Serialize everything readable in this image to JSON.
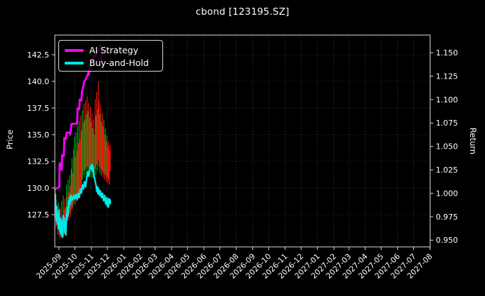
{
  "window": {
    "title": "cbond [123195.SZ]"
  },
  "chart_data": {
    "type": "line",
    "subtype": "price-lines-with-high-low-bars",
    "title": "cbond [123195.SZ]",
    "background": "#000000",
    "text_color": "#ffffff",
    "grid": true,
    "grid_color": "#565656",
    "spine_color": "#dcdcdc",
    "left_axis": {
      "label": "Price",
      "tick_labels": [
        "127.5",
        "130.0",
        "132.5",
        "135.0",
        "137.5",
        "140.0",
        "142.5"
      ],
      "ticks": [
        127.5,
        130.0,
        132.5,
        135.0,
        137.5,
        140.0,
        142.5
      ],
      "range": [
        124.5,
        144.4
      ]
    },
    "right_axis": {
      "label": "Return",
      "tick_labels": [
        "0.950",
        "0.975",
        "1.000",
        "1.025",
        "1.050",
        "1.075",
        "1.100",
        "1.125",
        "1.150"
      ],
      "ticks": [
        0.95,
        0.975,
        1.0,
        1.025,
        1.05,
        1.075,
        1.1,
        1.125,
        1.15
      ],
      "range": [
        0.944,
        1.169
      ]
    },
    "x_axis": {
      "tick_labels": [
        "2025-09",
        "2025-10",
        "2025-11",
        "2025-12",
        "2026-01",
        "2026-02",
        "2026-03",
        "2026-04",
        "2026-05",
        "2026-06",
        "2026-07",
        "2026-08",
        "2026-09",
        "2026-10",
        "2026-11",
        "2026-12",
        "2027-01",
        "2027-02",
        "2027-03",
        "2027-04",
        "2027-05",
        "2027-06",
        "2027-07",
        "2027-08"
      ],
      "tick_day_offsets": [
        0,
        30,
        61,
        91,
        122,
        153,
        181,
        212,
        242,
        273,
        303,
        334,
        365,
        395,
        426,
        456,
        487,
        518,
        546,
        577,
        607,
        638,
        668,
        699
      ],
      "rotation_deg": -45
    },
    "legend": {
      "position": "upper-left",
      "entries": [
        {
          "label": "AI Strategy",
          "color": "#ff00ff"
        },
        {
          "label": "Buy-and-Hold",
          "color": "#00e8e8"
        }
      ]
    },
    "series": [
      {
        "name": "AI Strategy",
        "color": "#ff00ff",
        "width": 2.8,
        "axis": "price",
        "points": [
          [
            -7,
            129.9
          ],
          [
            -3,
            130.0
          ],
          [
            0,
            130.1
          ],
          [
            0.5,
            130.1
          ],
          [
            1,
            132.3
          ],
          [
            4,
            132.3
          ],
          [
            5,
            131.7
          ],
          [
            6,
            133.1
          ],
          [
            9,
            133.0
          ],
          [
            10,
            134.7
          ],
          [
            13,
            134.6
          ],
          [
            14,
            135.2
          ],
          [
            20,
            135.2
          ],
          [
            21,
            135.0
          ],
          [
            22,
            135.3
          ],
          [
            23,
            136.0
          ],
          [
            33,
            136.05
          ],
          [
            34,
            136.0
          ],
          [
            35,
            137.5
          ],
          [
            38,
            137.4
          ],
          [
            39,
            138.3
          ],
          [
            42,
            138.2
          ],
          [
            43,
            139.0
          ],
          [
            45,
            139.4
          ],
          [
            47,
            139.9
          ],
          [
            50,
            140.2
          ],
          [
            53,
            140.5
          ],
          [
            55,
            140.8
          ],
          [
            56,
            140.6
          ],
          [
            58,
            141.3
          ],
          [
            60,
            141.6
          ],
          [
            62,
            142.0
          ],
          [
            64,
            141.8
          ],
          [
            65,
            142.3
          ],
          [
            68,
            142.5
          ],
          [
            70,
            142.4
          ],
          [
            71,
            142.8
          ],
          [
            74,
            142.9
          ],
          [
            77,
            143.1
          ],
          [
            79,
            143.45
          ],
          [
            80,
            142.2
          ],
          [
            81,
            141.4
          ],
          [
            83,
            141.2
          ]
        ]
      },
      {
        "name": "Buy-and-Hold",
        "color": "#00e8e8",
        "width": 2.3,
        "axis": "price",
        "points": [
          [
            -7,
            129.4
          ],
          [
            -6,
            128.0
          ],
          [
            -5.5,
            128.3
          ],
          [
            -5,
            126.9
          ],
          [
            -4,
            128.2
          ],
          [
            -3,
            126.6
          ],
          [
            -2,
            127.5
          ],
          [
            -1,
            126.2
          ],
          [
            0,
            127.9
          ],
          [
            1,
            126.0
          ],
          [
            2,
            127.2
          ],
          [
            3,
            125.7
          ],
          [
            4,
            127.0
          ],
          [
            5,
            125.5
          ],
          [
            6,
            126.8
          ],
          [
            7,
            125.4
          ],
          [
            8,
            127.4
          ],
          [
            9,
            126.5
          ],
          [
            10,
            127.2
          ],
          [
            11,
            125.8
          ],
          [
            12,
            126.9
          ],
          [
            13,
            125.6
          ],
          [
            14,
            127.6
          ],
          [
            15,
            127.0
          ],
          [
            16,
            128.2
          ],
          [
            17,
            127.4
          ],
          [
            18,
            128.8
          ],
          [
            19,
            128.2
          ],
          [
            20,
            129.1
          ],
          [
            21,
            128.5
          ],
          [
            22,
            129.3
          ],
          [
            23,
            128.8
          ],
          [
            24,
            129.2
          ],
          [
            26,
            128.9
          ],
          [
            28,
            129.3
          ],
          [
            30,
            129.0
          ],
          [
            32,
            129.4
          ],
          [
            34,
            128.9
          ],
          [
            36,
            129.5
          ],
          [
            38,
            129.1
          ],
          [
            40,
            129.9
          ],
          [
            42,
            129.5
          ],
          [
            44,
            130.3
          ],
          [
            46,
            129.9
          ],
          [
            48,
            130.6
          ],
          [
            50,
            130.1
          ],
          [
            52,
            130.9
          ],
          [
            54,
            131.5
          ],
          [
            56,
            131.1
          ],
          [
            58,
            131.8
          ],
          [
            60,
            132.1
          ],
          [
            61,
            131.8
          ],
          [
            62,
            132.2
          ],
          [
            63,
            131.6
          ],
          [
            64,
            132.0
          ],
          [
            65,
            131.5
          ],
          [
            66,
            131.1
          ],
          [
            68,
            130.7
          ],
          [
            70,
            130.2
          ],
          [
            71,
            129.7
          ],
          [
            72,
            130.1
          ],
          [
            73,
            129.5
          ],
          [
            74,
            130.0
          ],
          [
            75,
            129.4
          ],
          [
            76,
            129.8
          ],
          [
            77,
            129.3
          ],
          [
            78,
            129.7
          ],
          [
            80,
            129.1
          ],
          [
            82,
            129.5
          ],
          [
            84,
            128.8
          ],
          [
            86,
            129.3
          ],
          [
            88,
            128.5
          ],
          [
            90,
            129.1
          ],
          [
            91,
            128.3
          ],
          [
            92,
            128.9
          ],
          [
            93,
            128.2
          ],
          [
            94,
            129.0
          ],
          [
            95,
            128.5
          ],
          [
            96,
            128.9
          ],
          [
            97,
            128.6
          ]
        ]
      }
    ],
    "price_bars": {
      "up_color": "#00a51b",
      "down_color": "#ff1207",
      "bar_width": 1.15,
      "bars": [
        [
          -7,
          127.2,
          129.8,
          "d"
        ],
        [
          -5.5,
          126.3,
          128.9,
          "d"
        ],
        [
          -4,
          126.7,
          128.4,
          "u"
        ],
        [
          -2.5,
          125.6,
          127.9,
          "d"
        ],
        [
          -1,
          126.1,
          128.6,
          "u"
        ],
        [
          0.5,
          125.4,
          127.5,
          "d"
        ],
        [
          2,
          125.9,
          128.2,
          "d"
        ],
        [
          3.5,
          125.3,
          127.3,
          "d"
        ],
        [
          5,
          125.7,
          128.8,
          "u"
        ],
        [
          6.5,
          125.3,
          127.2,
          "d"
        ],
        [
          8,
          126.1,
          129.3,
          "u"
        ],
        [
          9.5,
          125.6,
          128.0,
          "d"
        ],
        [
          11,
          126.2,
          129.0,
          "d"
        ],
        [
          12.5,
          125.5,
          128.2,
          "d"
        ],
        [
          14,
          126.6,
          130.3,
          "u"
        ],
        [
          15.5,
          126.9,
          129.2,
          "d"
        ],
        [
          17,
          127.2,
          130.8,
          "u"
        ],
        [
          18.5,
          127.0,
          129.6,
          "d"
        ],
        [
          20,
          127.6,
          131.2,
          "u"
        ],
        [
          21.5,
          127.3,
          130.2,
          "d"
        ],
        [
          23,
          127.9,
          131.8,
          "u"
        ],
        [
          24.5,
          128.2,
          132.8,
          "u"
        ],
        [
          26,
          128.0,
          131.4,
          "d"
        ],
        [
          27.5,
          128.5,
          133.6,
          "u"
        ],
        [
          29,
          128.8,
          134.8,
          "u"
        ],
        [
          30.5,
          128.4,
          132.9,
          "d"
        ],
        [
          32,
          129.0,
          135.2,
          "u"
        ],
        [
          33.5,
          128.7,
          133.5,
          "d"
        ],
        [
          35,
          129.3,
          135.8,
          "u"
        ],
        [
          36.5,
          129.0,
          134.2,
          "d"
        ],
        [
          38,
          129.6,
          136.3,
          "u"
        ],
        [
          39.5,
          129.2,
          134.6,
          "d"
        ],
        [
          41,
          129.8,
          136.8,
          "d"
        ],
        [
          42.5,
          130.4,
          135.4,
          "u"
        ],
        [
          44,
          130.8,
          137.3,
          "u"
        ],
        [
          45.5,
          131.2,
          136.1,
          "d"
        ],
        [
          47,
          131.6,
          137.9,
          "d"
        ],
        [
          48.5,
          131.0,
          136.4,
          "u"
        ],
        [
          50,
          131.8,
          138.2,
          "d"
        ],
        [
          51.5,
          131.3,
          136.9,
          "u"
        ],
        [
          53,
          132.0,
          138.6,
          "d"
        ],
        [
          54.5,
          131.5,
          137.2,
          "u"
        ],
        [
          56,
          131.9,
          138.0,
          "d"
        ],
        [
          57.5,
          131.2,
          136.6,
          "u"
        ],
        [
          59,
          131.7,
          137.6,
          "d"
        ],
        [
          60.5,
          131.0,
          136.2,
          "u"
        ],
        [
          62,
          131.5,
          137.0,
          "d"
        ],
        [
          63.5,
          130.9,
          135.6,
          "u"
        ],
        [
          65,
          131.3,
          136.4,
          "d"
        ],
        [
          66.5,
          130.7,
          135.0,
          "u"
        ],
        [
          68,
          131.8,
          138.3,
          "d"
        ],
        [
          69.5,
          131.2,
          136.8,
          "u"
        ],
        [
          71,
          132.2,
          139.0,
          "d"
        ],
        [
          72.5,
          131.6,
          137.4,
          "u"
        ],
        [
          74,
          132.6,
          140.0,
          "d"
        ],
        [
          75.5,
          132.0,
          138.2,
          "d"
        ],
        [
          77,
          131.4,
          136.9,
          "u"
        ],
        [
          78.5,
          131.8,
          137.8,
          "d"
        ],
        [
          80,
          131.2,
          136.2,
          "u"
        ],
        [
          81.5,
          131.6,
          137.0,
          "d"
        ],
        [
          83,
          131.0,
          135.8,
          "d"
        ],
        [
          84.5,
          131.4,
          136.4,
          "u"
        ],
        [
          86,
          130.8,
          135.0,
          "d"
        ],
        [
          87.5,
          131.2,
          135.6,
          "u"
        ],
        [
          89,
          130.6,
          134.4,
          "d"
        ],
        [
          90.5,
          131.0,
          134.9,
          "u"
        ],
        [
          92,
          130.4,
          133.9,
          "d"
        ],
        [
          93.5,
          130.8,
          134.3,
          "d"
        ],
        [
          95,
          130.3,
          133.5,
          "d"
        ],
        [
          96.5,
          131.6,
          134.0,
          "d"
        ]
      ]
    }
  }
}
